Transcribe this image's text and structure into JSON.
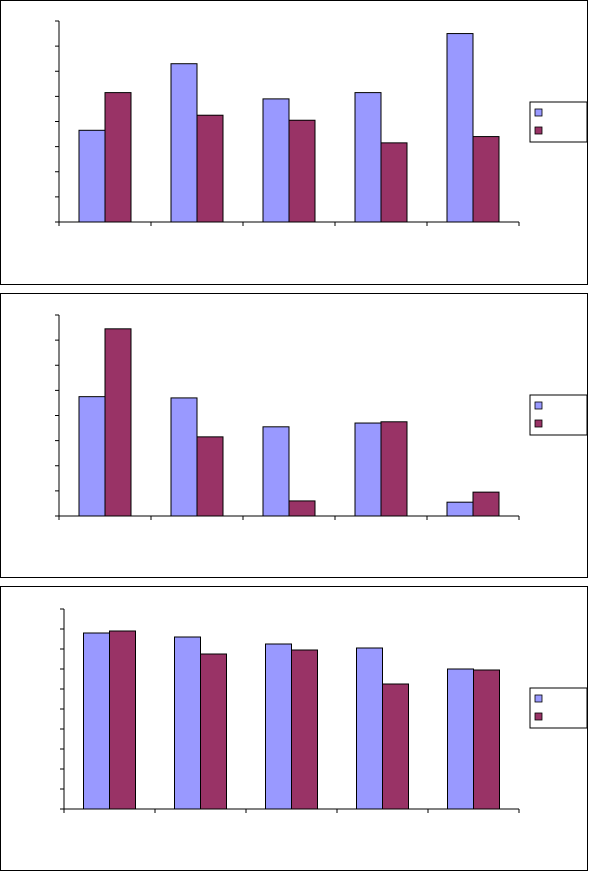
{
  "colors": {
    "series_a": "#9999ff",
    "series_b": "#993366",
    "axis": "#000000"
  },
  "chart_data": [
    {
      "type": "bar",
      "categories": [
        "",
        "",
        "",
        "",
        ""
      ],
      "series": [
        {
          "values": [
            3.65,
            6.3,
            4.9,
            5.15,
            7.5
          ]
        },
        {
          "values": [
            5.15,
            4.25,
            4.05,
            3.15,
            3.4
          ]
        }
      ],
      "ylim": [
        0,
        8
      ],
      "legend": "right",
      "grid": false,
      "title": "",
      "xlabel": "",
      "ylabel": ""
    },
    {
      "type": "bar",
      "categories": [
        "",
        "",
        "",
        "",
        ""
      ],
      "series": [
        {
          "values": [
            4.75,
            4.7,
            3.55,
            3.7,
            0.55
          ]
        },
        {
          "values": [
            7.45,
            3.15,
            0.6,
            3.75,
            0.95
          ]
        }
      ],
      "ylim": [
        0,
        8
      ],
      "legend": "right",
      "grid": false,
      "title": "",
      "xlabel": "",
      "ylabel": ""
    },
    {
      "type": "bar",
      "categories": [
        "",
        "",
        "",
        "",
        ""
      ],
      "series": [
        {
          "values": [
            8.8,
            8.6,
            8.25,
            8.05,
            7.0
          ]
        },
        {
          "values": [
            8.9,
            7.75,
            7.95,
            6.25,
            6.95
          ]
        }
      ],
      "ylim": [
        0,
        10
      ],
      "legend": "right",
      "grid": false,
      "title": "",
      "xlabel": "",
      "ylabel": ""
    }
  ]
}
